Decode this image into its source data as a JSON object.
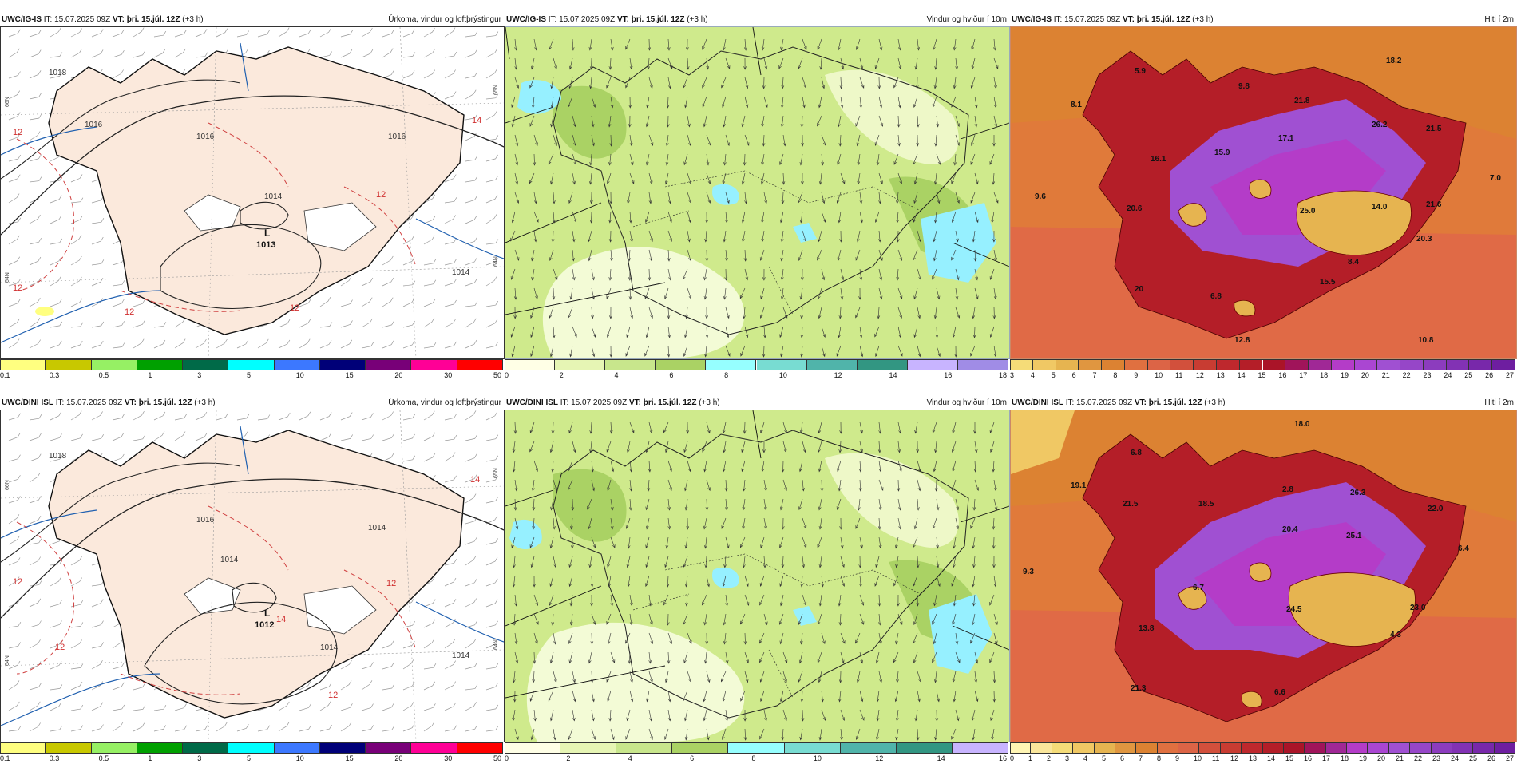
{
  "rows": [
    {
      "id": "top",
      "panels": [
        {
          "model": "UWC/IG-IS",
          "it_label": "IT:",
          "it": "15.07.2025 09Z",
          "vt_label": "VT:",
          "vt": "þri. 15.júl. 12Z",
          "lead": "(+3 h)",
          "title": "Úrkoma, vindur og loftþrýstingur",
          "low_label": "L",
          "low_value": "1013",
          "isobars": [
            "1018",
            "1016",
            "1016",
            "1016",
            "1014",
            "1014"
          ],
          "temps_red": [
            "12",
            "12",
            "12",
            "12",
            "14",
            "12"
          ],
          "lat_labels": [
            "66N",
            "65N",
            "64N",
            "64N"
          ]
        },
        {
          "model": "UWC/IG-IS",
          "it_label": "IT:",
          "it": "15.07.2025 09Z",
          "vt_label": "VT:",
          "vt": "þri. 15.júl. 12Z",
          "lead": "(+3 h)",
          "title": "Vindur og hviður í 10m"
        },
        {
          "model": "UWC/IG-IS",
          "it_label": "IT:",
          "it": "15.07.2025 09Z",
          "vt_label": "VT:",
          "vt": "þri. 15.júl. 12Z",
          "lead": "(+3 h)",
          "title": "Hiti í 2m",
          "temps": [
            "5.9",
            "18.2",
            "8.1",
            "9.8",
            "21.8",
            "26.2",
            "21.5",
            "15.9",
            "17.1",
            "16.1",
            "7.0",
            "9.6",
            "20.6",
            "25.0",
            "14.0",
            "21.6",
            "20.3",
            "8.4",
            "20",
            "15.5",
            "6.8",
            "12.8",
            "10.8"
          ]
        }
      ]
    },
    {
      "id": "bottom",
      "panels": [
        {
          "model": "UWC/DINI ISL",
          "it_label": "IT:",
          "it": "15.07.2025 09Z",
          "vt_label": "VT:",
          "vt": "þri. 15.júl. 12Z",
          "lead": "(+3 h)",
          "title": "Úrkoma, vindur og loftþrýstingur",
          "low_label": "L",
          "low_value": "1012",
          "isobars": [
            "1018",
            "1016",
            "1014",
            "1014",
            "1014",
            "1014"
          ],
          "temps_red": [
            "12",
            "12",
            "14",
            "12",
            "12",
            "14"
          ],
          "lat_labels": [
            "66N",
            "65N",
            "64N",
            "64N"
          ]
        },
        {
          "model": "UWC/DINI ISL",
          "it_label": "IT:",
          "it": "15.07.2025 09Z",
          "vt_label": "VT:",
          "vt": "þri. 15.júl. 12Z",
          "lead": "(+3 h)",
          "title": "Vindur og hviður í 10m"
        },
        {
          "model": "UWC/DINI ISL",
          "it_label": "IT:",
          "it": "15.07.2025 09Z",
          "vt_label": "VT:",
          "vt": "þri. 15.júl. 12Z",
          "lead": "(+3 h)",
          "title": "Hiti í 2m",
          "temps": [
            "18.0",
            "6.8",
            "19.1",
            "21.5",
            "18.5",
            "2.8",
            "26.3",
            "22.0",
            "20.4",
            "25.1",
            "6.4",
            "9.3",
            "6.7",
            "24.5",
            "23.0",
            "13.8",
            "4.3",
            "21.3",
            "6.6"
          ]
        }
      ]
    }
  ],
  "colorbars": {
    "precip": {
      "colors": [
        "#ffff80",
        "#c8c800",
        "#96f064",
        "#00a000",
        "#006a48",
        "#00ffff",
        "#3c78ff",
        "#000078",
        "#780078",
        "#ff0096",
        "#ff0000"
      ],
      "labels": [
        "0.1",
        "0.3",
        "0.5",
        "1",
        "3",
        "5",
        "10",
        "15",
        "20",
        "30",
        "50"
      ]
    },
    "wind_top": {
      "colors": [
        "#ffffe6",
        "#e6f5b4",
        "#c8e68c",
        "#aad264",
        "#96ffff",
        "#78dcd2",
        "#50b4aa",
        "#329682",
        "#c8b4ff",
        "#a08ce6"
      ],
      "labels": [
        "0",
        "2",
        "4",
        "6",
        "8",
        "10",
        "12",
        "14",
        "16",
        "18"
      ]
    },
    "wind_bottom": {
      "colors": [
        "#ffffe6",
        "#e6f5b4",
        "#c8e68c",
        "#aad264",
        "#96ffff",
        "#78dcd2",
        "#50b4aa",
        "#329682",
        "#c8b4ff"
      ],
      "labels": [
        "0",
        "2",
        "4",
        "6",
        "8",
        "10",
        "12",
        "14",
        "16"
      ]
    },
    "temp_top": {
      "colors": [
        "#f5dc78",
        "#f0c864",
        "#e6b450",
        "#e09640",
        "#dc8232",
        "#e07040",
        "#dc6446",
        "#d2503c",
        "#c83c32",
        "#be282d",
        "#b41e28",
        "#aa1428",
        "#a0145a",
        "#a02896",
        "#b43cc8",
        "#aa46d2",
        "#a050d2",
        "#9646c8",
        "#8c3cbe",
        "#8232b4",
        "#7828aa",
        "#6e1ea0"
      ],
      "labels": [
        "3",
        "4",
        "5",
        "6",
        "7",
        "8",
        "9",
        "10",
        "11",
        "12",
        "13",
        "14",
        "15",
        "16",
        "17",
        "18",
        "19",
        "20",
        "21",
        "22",
        "23",
        "24",
        "25",
        "26",
        "27"
      ]
    },
    "temp_bottom": {
      "colors": [
        "#fff5b4",
        "#fae69b",
        "#f5dc78",
        "#f0c864",
        "#e6b450",
        "#e09640",
        "#dc8232",
        "#e07040",
        "#dc6446",
        "#d2503c",
        "#c83c32",
        "#be282d",
        "#b41e28",
        "#aa1428",
        "#a0145a",
        "#a02896",
        "#b43cc8",
        "#aa46d2",
        "#a050d2",
        "#9646c8",
        "#8c3cbe",
        "#8232b4",
        "#7828aa",
        "#6e1ea0"
      ],
      "labels": [
        "0",
        "1",
        "2",
        "3",
        "4",
        "5",
        "6",
        "7",
        "8",
        "9",
        "10",
        "11",
        "12",
        "13",
        "14",
        "15",
        "16",
        "17",
        "18",
        "19",
        "20",
        "21",
        "22",
        "23",
        "24",
        "25",
        "26",
        "27"
      ]
    }
  }
}
